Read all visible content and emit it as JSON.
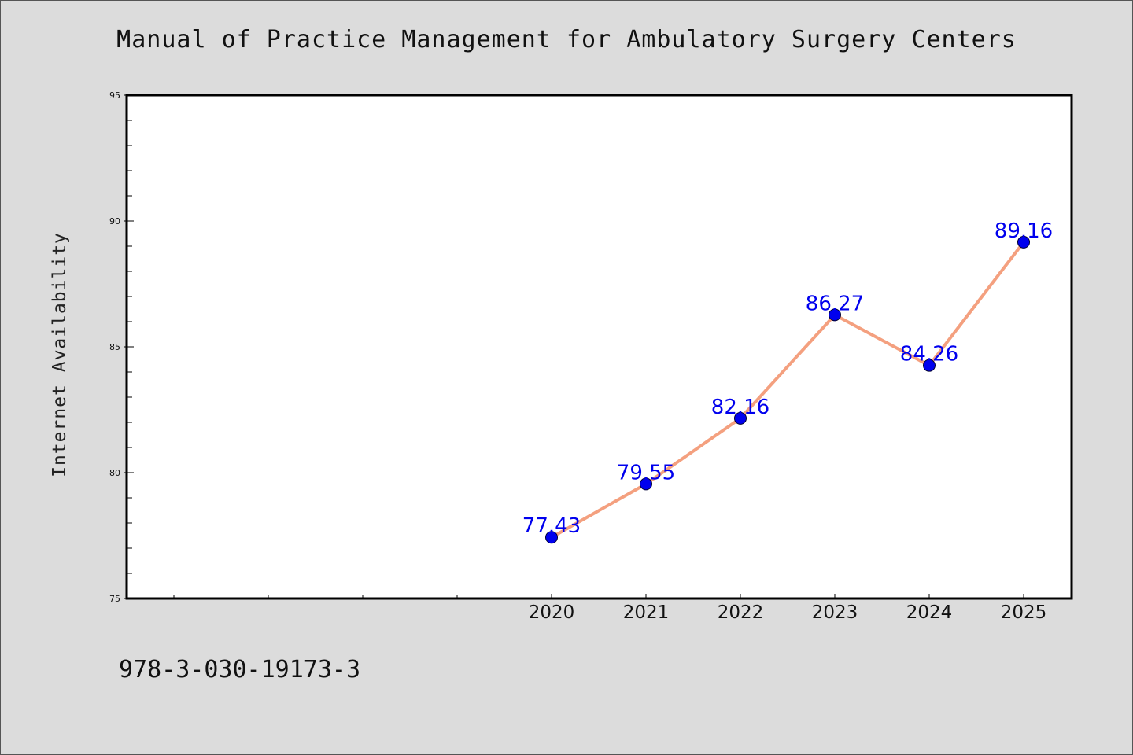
{
  "header": {
    "title": "Manual of Practice Management for Ambulatory Surgery Centers"
  },
  "footer": {
    "code": "978-3-030-19173-3"
  },
  "colors": {
    "background": "#dcdcdc",
    "plot_background": "#ffffff",
    "line": "#f4a07f",
    "marker": "#0000ee",
    "data_label": "#0000ee"
  },
  "chart_data": {
    "type": "line",
    "title": "Manual of Practice Management for Ambulatory Surgery Centers",
    "xlabel": "",
    "ylabel": "Internet Availability",
    "x": [
      "2020",
      "2021",
      "2022",
      "2023",
      "2024",
      "2025"
    ],
    "series": [
      {
        "values": [
          77.43,
          79.55,
          82.16,
          86.27,
          84.26,
          89.16
        ],
        "labels": [
          "77.43",
          "79.55",
          "82.16",
          "86.27",
          "84.26",
          "89.16"
        ]
      }
    ],
    "ylim": [
      75,
      95
    ],
    "yticks": [
      75,
      80,
      85,
      90,
      95
    ],
    "grid": false,
    "legend": "none"
  }
}
